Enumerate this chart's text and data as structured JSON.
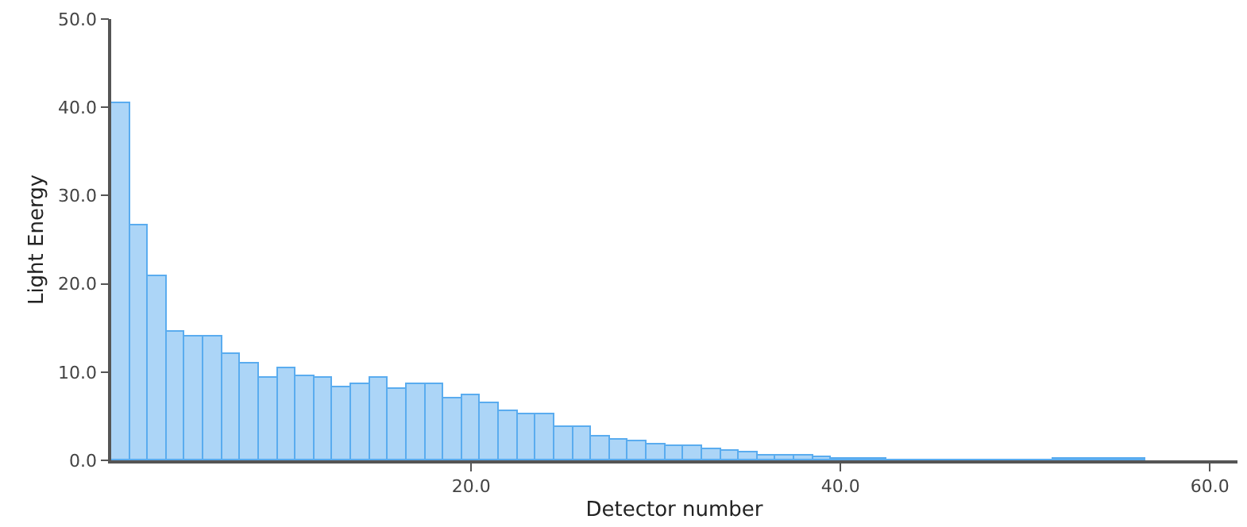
{
  "chart_data": {
    "type": "bar",
    "xlabel": "Detector number",
    "ylabel": "Light Energy",
    "x": [
      1,
      2,
      3,
      4,
      5,
      6,
      7,
      8,
      9,
      10,
      11,
      12,
      13,
      14,
      15,
      16,
      17,
      18,
      19,
      20,
      21,
      22,
      23,
      24,
      25,
      26,
      27,
      28,
      29,
      30,
      31,
      32,
      33,
      34,
      35,
      36,
      37,
      38,
      39,
      40,
      41,
      42,
      43,
      44,
      45,
      46,
      47,
      48,
      49,
      50,
      51,
      52,
      53,
      54,
      55,
      56
    ],
    "values": [
      40.4,
      26.7,
      20.9,
      14.5,
      14.0,
      14.0,
      12.1,
      11.0,
      9.3,
      10.4,
      9.5,
      9.3,
      8.2,
      8.7,
      9.3,
      8.1,
      8.7,
      8.6,
      7.0,
      7.4,
      6.5,
      5.5,
      5.2,
      5.2,
      3.7,
      3.7,
      2.7,
      2.4,
      2.1,
      1.8,
      1.6,
      1.6,
      1.2,
      1.0,
      0.9,
      0.6,
      0.5,
      0.5,
      0.3,
      0.1,
      0.1,
      0.1,
      0.0,
      0.0,
      0.0,
      0.0,
      0.0,
      0.0,
      0.0,
      0.0,
      0.0,
      0.1,
      0.1,
      0.1,
      0.1,
      0.1
    ],
    "color": "#5aacef",
    "xlim": [
      0.5,
      61.5
    ],
    "xticks": [
      {
        "value": 20,
        "label": "20.0"
      },
      {
        "value": 40,
        "label": "40.0"
      },
      {
        "value": 60,
        "label": "60.0"
      }
    ],
    "ylim": [
      0,
      50
    ],
    "yticks": [
      {
        "value": 0,
        "label": "0.0"
      },
      {
        "value": 10,
        "label": "10.0"
      },
      {
        "value": 20,
        "label": "20.0"
      },
      {
        "value": 30,
        "label": "30.0"
      },
      {
        "value": 40,
        "label": "40.0"
      },
      {
        "value": 50,
        "label": "50.0"
      }
    ]
  }
}
